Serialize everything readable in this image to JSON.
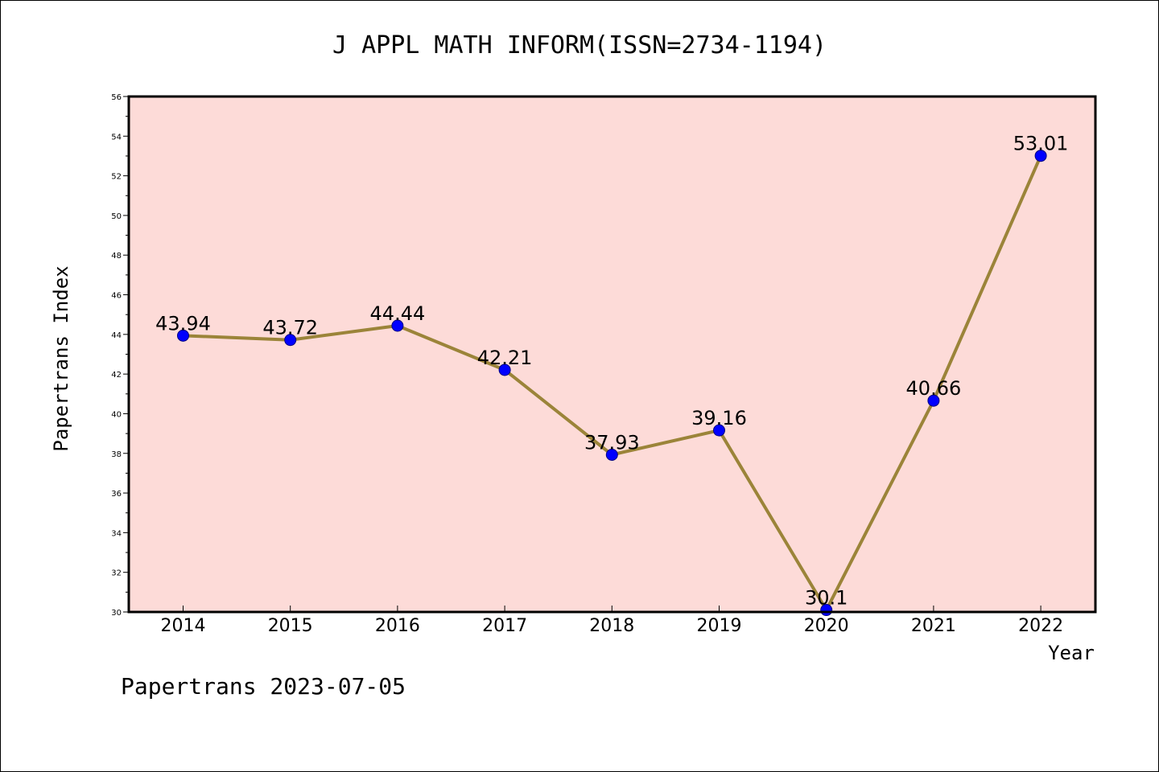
{
  "footer": "Papertrans 2023-07-05",
  "chart_data": {
    "type": "line",
    "title": "J APPL MATH INFORM(ISSN=2734-1194)",
    "xlabel": "Year",
    "ylabel": "Papertrans Index",
    "categories": [
      "2014",
      "2015",
      "2016",
      "2017",
      "2018",
      "2019",
      "2020",
      "2021",
      "2022"
    ],
    "values": [
      43.94,
      43.72,
      44.44,
      42.21,
      37.93,
      39.16,
      30.1,
      40.66,
      53.01
    ],
    "data_labels": [
      "43.94",
      "43.72",
      "44.44",
      "42.21",
      "37.93",
      "39.16",
      "30.1",
      "40.66",
      "53.01"
    ],
    "ylim": [
      30,
      56
    ],
    "yticks": [
      30,
      32,
      34,
      36,
      38,
      40,
      42,
      44,
      46,
      48,
      50,
      52,
      54,
      56
    ],
    "grid": false,
    "colors": {
      "plot_background": "#fddbd8",
      "line": "#9b8439",
      "marker": "#0000ff",
      "marker_edge": "#000080"
    }
  }
}
